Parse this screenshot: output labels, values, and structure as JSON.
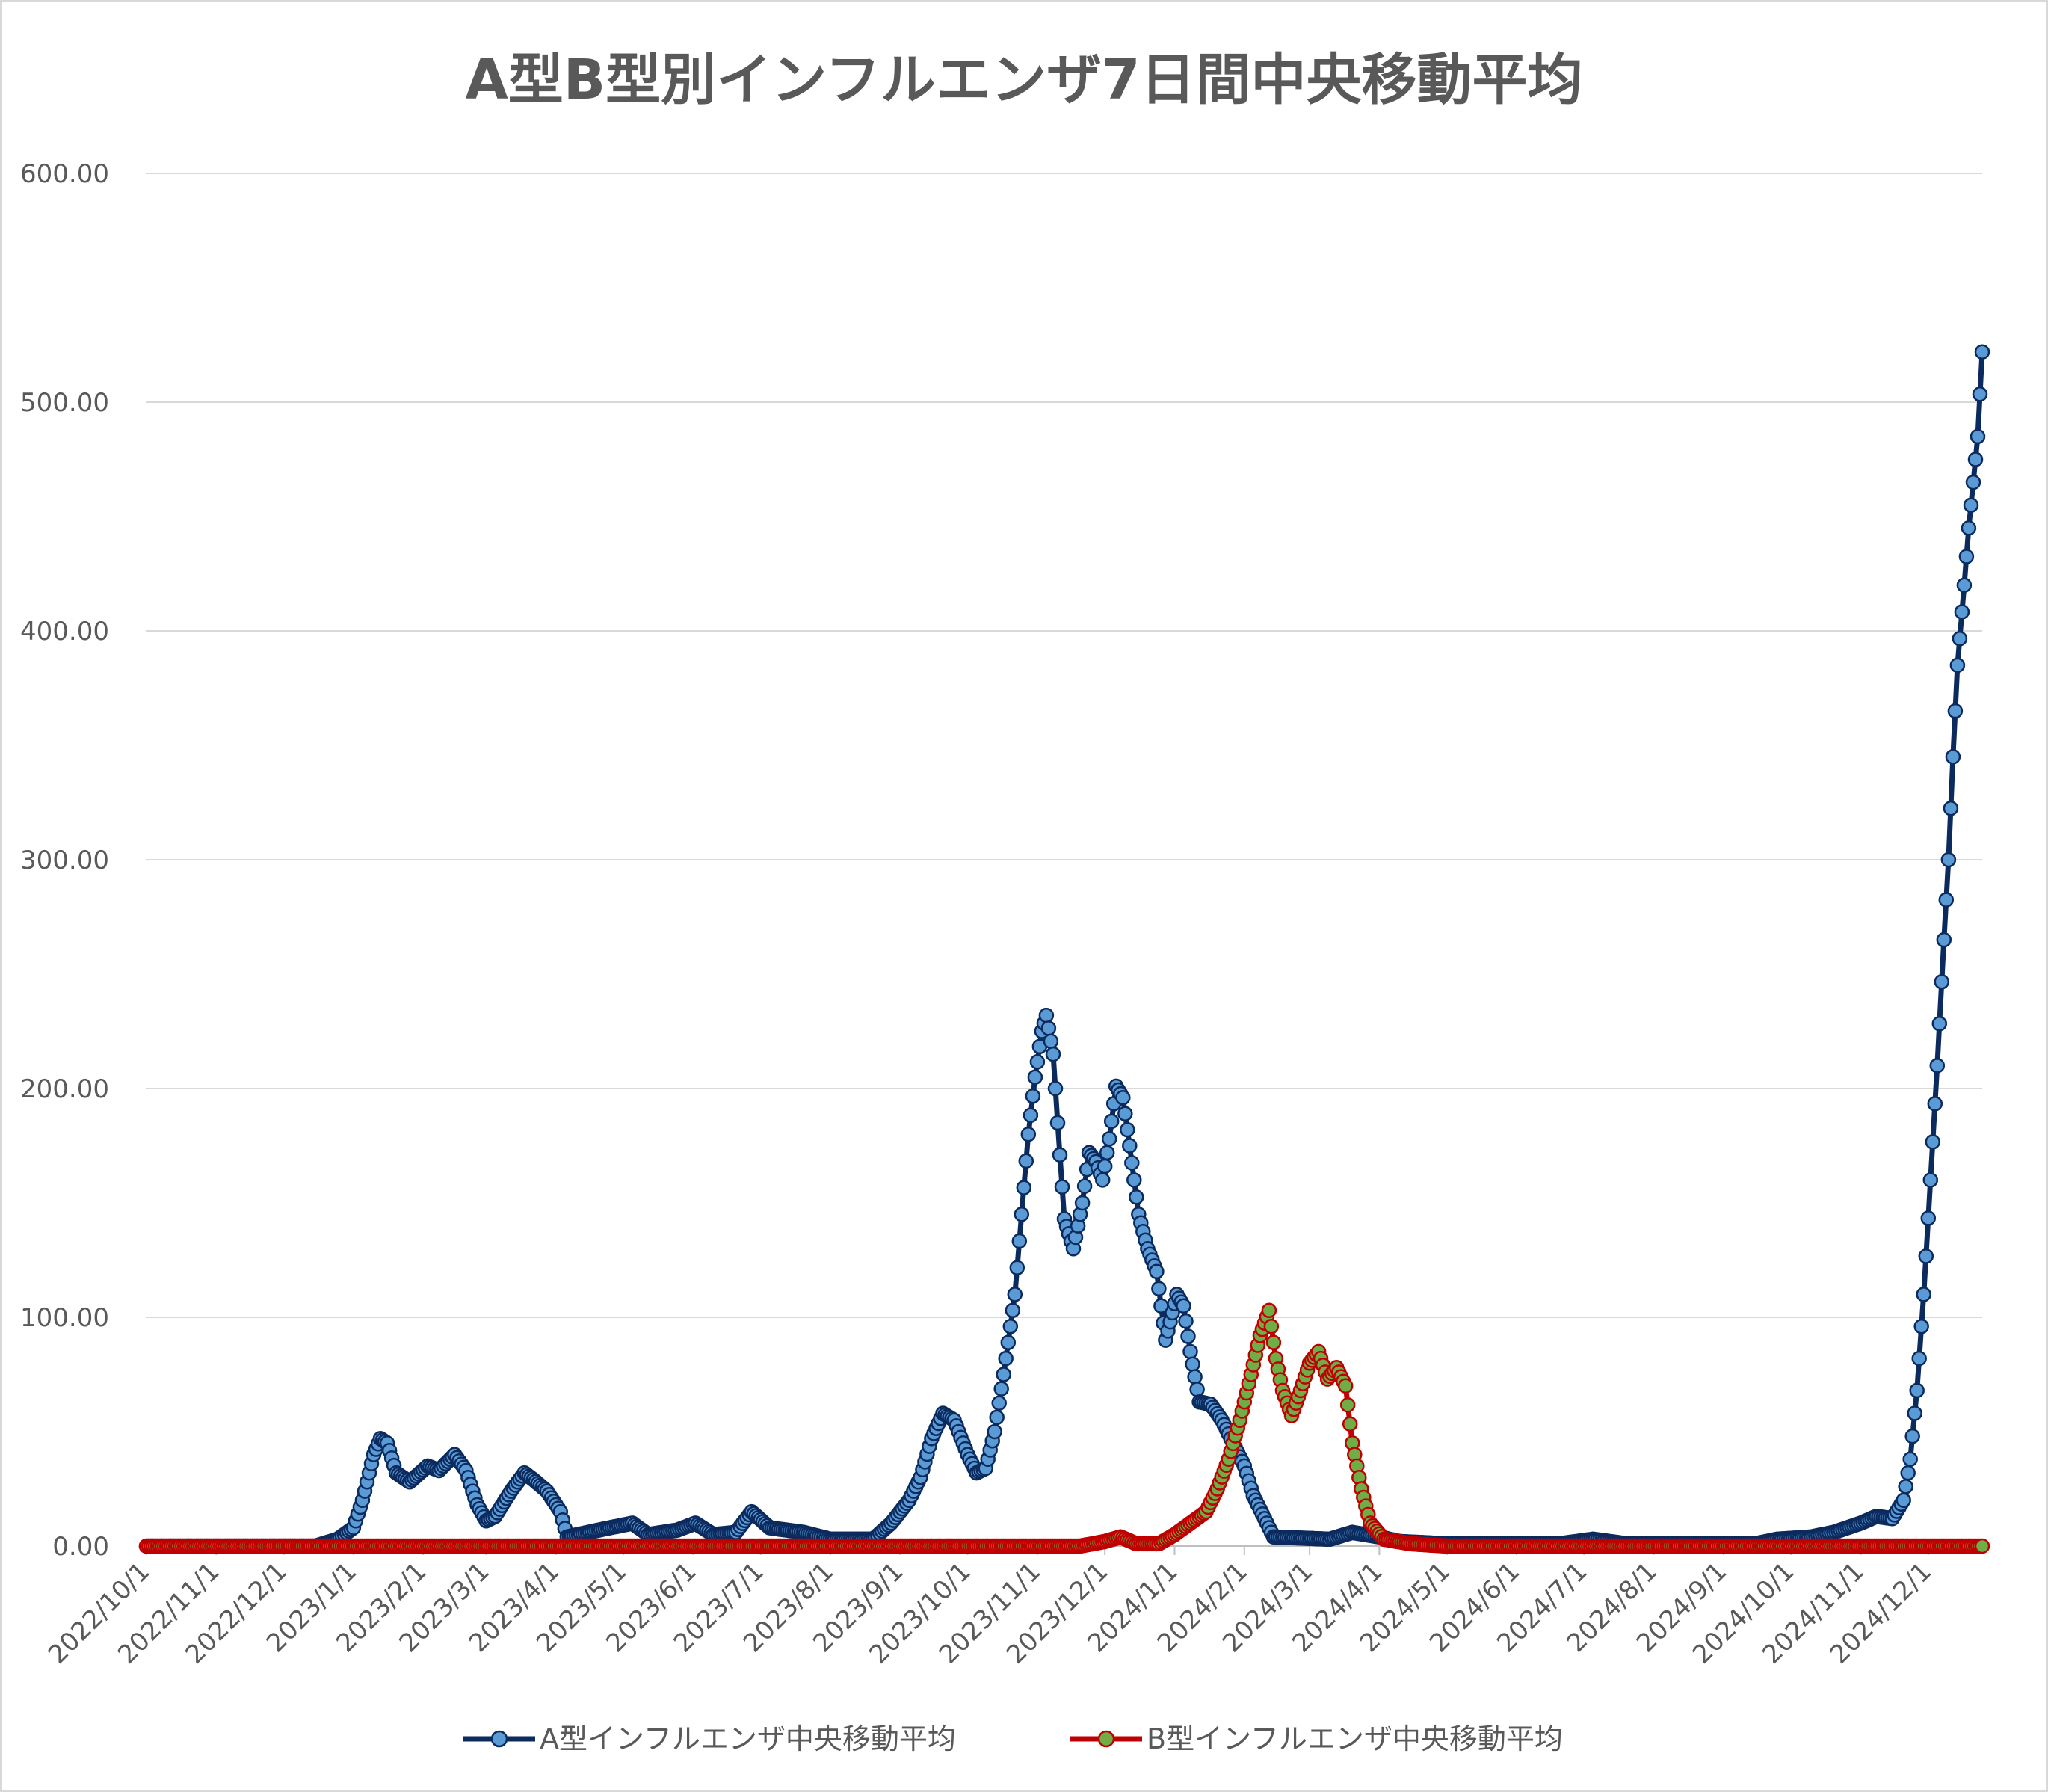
{
  "chart_data": {
    "type": "line",
    "title": "A型B型別インフルエンザ7日間中央移動平均",
    "xlabel": "",
    "ylabel": "",
    "x_start": "2022/10/1",
    "x_end": "2024/12/25",
    "ylim": [
      0,
      600
    ],
    "yticks": [
      "0.00",
      "100.00",
      "200.00",
      "300.00",
      "400.00",
      "500.00",
      "600.00"
    ],
    "xticks": [
      "2022/10/1",
      "2022/11/1",
      "2022/12/1",
      "2023/1/1",
      "2023/2/1",
      "2023/3/1",
      "2023/4/1",
      "2023/5/1",
      "2023/6/1",
      "2023/7/1",
      "2023/8/1",
      "2023/9/1",
      "2023/10/1",
      "2023/11/1",
      "2023/12/1",
      "2024/1/1",
      "2024/2/1",
      "2024/3/1",
      "2024/4/1",
      "2024/5/1",
      "2024/6/1",
      "2024/7/1",
      "2024/8/1",
      "2024/9/1",
      "2024/10/1",
      "2024/11/1",
      "2024/12/1"
    ],
    "grid": true,
    "legend_position": "bottom",
    "series": [
      {
        "name": "A型インフルエンザ中央移動平均",
        "line_color": "#0b2a5e",
        "marker_color": "#5b9bd5",
        "points": [
          [
            "2022/10/1",
            0
          ],
          [
            "2022/12/15",
            0
          ],
          [
            "2022/12/25",
            3
          ],
          [
            "2023/1/1",
            8
          ],
          [
            "2023/1/5",
            20
          ],
          [
            "2023/1/10",
            40
          ],
          [
            "2023/1/13",
            47
          ],
          [
            "2023/1/16",
            45
          ],
          [
            "2023/1/20",
            32
          ],
          [
            "2023/1/26",
            28
          ],
          [
            "2023/2/3",
            35
          ],
          [
            "2023/2/8",
            33
          ],
          [
            "2023/2/15",
            40
          ],
          [
            "2023/2/20",
            33
          ],
          [
            "2023/2/25",
            18
          ],
          [
            "2023/3/1",
            11
          ],
          [
            "2023/3/5",
            13
          ],
          [
            "2023/3/12",
            24
          ],
          [
            "2023/3/18",
            32
          ],
          [
            "2023/3/22",
            29
          ],
          [
            "2023/3/28",
            24
          ],
          [
            "2023/4/3",
            15
          ],
          [
            "2023/4/6",
            4
          ],
          [
            "2023/4/20",
            7
          ],
          [
            "2023/5/5",
            10
          ],
          [
            "2023/5/12",
            5
          ],
          [
            "2023/5/25",
            7
          ],
          [
            "2023/6/2",
            10
          ],
          [
            "2023/6/10",
            5
          ],
          [
            "2023/6/20",
            6
          ],
          [
            "2023/6/27",
            15
          ],
          [
            "2023/7/5",
            8
          ],
          [
            "2023/7/20",
            6
          ],
          [
            "2023/8/1",
            3
          ],
          [
            "2023/8/20",
            3
          ],
          [
            "2023/8/28",
            10
          ],
          [
            "2023/9/5",
            20
          ],
          [
            "2023/9/10",
            30
          ],
          [
            "2023/9/15",
            47
          ],
          [
            "2023/9/20",
            58
          ],
          [
            "2023/9/25",
            55
          ],
          [
            "2023/10/1",
            40
          ],
          [
            "2023/10/5",
            32
          ],
          [
            "2023/10/9",
            34
          ],
          [
            "2023/10/13",
            50
          ],
          [
            "2023/10/17",
            75
          ],
          [
            "2023/10/22",
            110
          ],
          [
            "2023/10/25",
            145
          ],
          [
            "2023/10/28",
            180
          ],
          [
            "2023/10/31",
            205
          ],
          [
            "2023/11/3",
            225
          ],
          [
            "2023/11/5",
            232
          ],
          [
            "2023/11/8",
            215
          ],
          [
            "2023/11/10",
            185
          ],
          [
            "2023/11/13",
            143
          ],
          [
            "2023/11/17",
            130
          ],
          [
            "2023/11/21",
            150
          ],
          [
            "2023/11/24",
            172
          ],
          [
            "2023/11/27",
            168
          ],
          [
            "2023/11/30",
            160
          ],
          [
            "2023/12/3",
            178
          ],
          [
            "2023/12/6",
            201
          ],
          [
            "2023/12/9",
            196
          ],
          [
            "2023/12/12",
            175
          ],
          [
            "2023/12/16",
            145
          ],
          [
            "2023/12/20",
            130
          ],
          [
            "2023/12/24",
            120
          ],
          [
            "2023/12/28",
            90
          ],
          [
            "2024/1/2",
            110
          ],
          [
            "2024/1/5",
            105
          ],
          [
            "2024/1/8",
            85
          ],
          [
            "2024/1/12",
            63
          ],
          [
            "2024/1/17",
            62
          ],
          [
            "2024/1/22",
            55
          ],
          [
            "2024/1/27",
            45
          ],
          [
            "2024/2/1",
            35
          ],
          [
            "2024/2/5",
            22
          ],
          [
            "2024/2/10",
            12
          ],
          [
            "2024/2/14",
            4
          ],
          [
            "2024/3/10",
            3
          ],
          [
            "2024/3/20",
            6
          ],
          [
            "2024/4/1",
            4
          ],
          [
            "2024/4/10",
            2
          ],
          [
            "2024/5/1",
            1
          ],
          [
            "2024/6/20",
            1
          ],
          [
            "2024/7/5",
            3
          ],
          [
            "2024/7/20",
            1
          ],
          [
            "2024/9/15",
            1
          ],
          [
            "2024/9/25",
            3
          ],
          [
            "2024/10/10",
            4
          ],
          [
            "2024/10/20",
            6
          ],
          [
            "2024/11/1",
            10
          ],
          [
            "2024/11/8",
            13
          ],
          [
            "2024/11/15",
            12
          ],
          [
            "2024/11/20",
            20
          ],
          [
            "2024/11/23",
            38
          ],
          [
            "2024/11/26",
            68
          ],
          [
            "2024/11/29",
            110
          ],
          [
            "2024/12/2",
            160
          ],
          [
            "2024/12/5",
            210
          ],
          [
            "2024/12/8",
            265
          ],
          [
            "2024/12/10",
            300
          ],
          [
            "2024/12/12",
            345
          ],
          [
            "2024/12/14",
            385
          ],
          [
            "2024/12/17",
            420
          ],
          [
            "2024/12/19",
            445
          ],
          [
            "2024/12/21",
            465
          ],
          [
            "2024/12/23",
            485
          ],
          [
            "2024/12/25",
            522
          ]
        ]
      },
      {
        "name": "B型インフルエンザ中央移動平均",
        "line_color": "#c00000",
        "marker_color": "#70ad47",
        "points": [
          [
            "2022/10/1",
            0
          ],
          [
            "2023/11/20",
            0
          ],
          [
            "2023/12/1",
            2
          ],
          [
            "2023/12/8",
            4
          ],
          [
            "2023/12/15",
            1
          ],
          [
            "2023/12/25",
            1
          ],
          [
            "2024/1/1",
            5
          ],
          [
            "2024/1/8",
            10
          ],
          [
            "2024/1/15",
            15
          ],
          [
            "2024/1/20",
            25
          ],
          [
            "2024/1/25",
            38
          ],
          [
            "2024/1/30",
            55
          ],
          [
            "2024/2/4",
            75
          ],
          [
            "2024/2/8",
            92
          ],
          [
            "2024/2/12",
            103
          ],
          [
            "2024/2/15",
            82
          ],
          [
            "2024/2/18",
            68
          ],
          [
            "2024/2/22",
            57
          ],
          [
            "2024/2/26",
            68
          ],
          [
            "2024/3/1",
            80
          ],
          [
            "2024/3/5",
            85
          ],
          [
            "2024/3/9",
            73
          ],
          [
            "2024/3/13",
            78
          ],
          [
            "2024/3/17",
            70
          ],
          [
            "2024/3/20",
            45
          ],
          [
            "2024/3/24",
            25
          ],
          [
            "2024/3/28",
            10
          ],
          [
            "2024/4/3",
            3
          ],
          [
            "2024/4/15",
            1
          ],
          [
            "2024/5/1",
            0
          ],
          [
            "2024/12/25",
            0
          ]
        ]
      }
    ]
  }
}
